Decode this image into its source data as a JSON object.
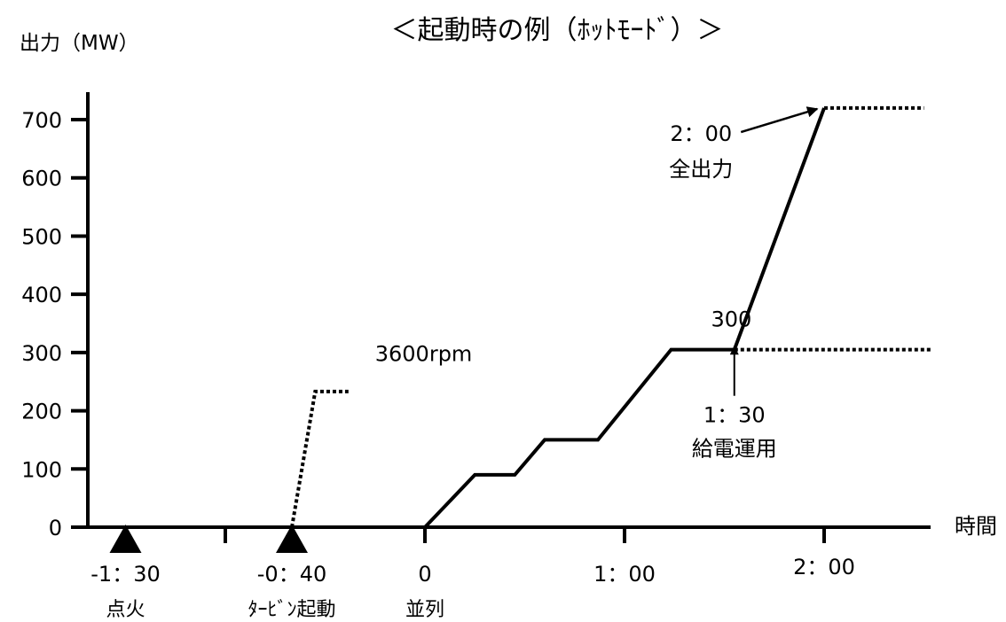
{
  "chart_data": {
    "type": "line",
    "title": "＜起動時の例（ﾎｯﾄﾓｰﾄﾞ）＞",
    "ylabel": "出力（MW）",
    "xlabel": "時間",
    "ylim": [
      0,
      700
    ],
    "y_ticks": [
      "0",
      "100",
      "200",
      "300",
      "400",
      "500",
      "600",
      "700"
    ],
    "x_ticks": [
      {
        "t": -90,
        "label": "-1：30",
        "caption": "点火",
        "marker": "triangle"
      },
      {
        "t": -60,
        "label": "",
        "caption": "",
        "marker": "none"
      },
      {
        "t": -40,
        "label": "-0：40",
        "caption": "ﾀｰﾋﾞﾝ起動",
        "marker": "triangle"
      },
      {
        "t": 0,
        "label": "0",
        "caption": "並列",
        "marker": "none"
      },
      {
        "t": 60,
        "label": "1：00",
        "caption": "",
        "marker": "none"
      },
      {
        "t": 120,
        "label": "2：00",
        "caption": "",
        "marker": "none"
      }
    ],
    "series": [
      {
        "style": "solid",
        "x": [
          0,
          15,
          27,
          36,
          52,
          74,
          93,
          120
        ],
        "y": [
          0,
          90,
          90,
          150,
          150,
          305,
          305,
          720
        ]
      },
      {
        "style": "dotted",
        "x": [
          -40,
          -33,
          -23
        ],
        "y": [
          0,
          233,
          233
        ]
      },
      {
        "style": "dotted",
        "x": [
          93,
          152
        ],
        "y": [
          305,
          305
        ]
      },
      {
        "style": "dotted",
        "x": [
          120,
          150
        ],
        "y": [
          720,
          720
        ]
      }
    ],
    "annotations": [
      {
        "text": "3600rpm",
        "x": -23,
        "y": 285
      },
      {
        "text": "300",
        "x": 78,
        "y": 345
      },
      {
        "text": "1：30",
        "caption": "給電運用",
        "x": 93,
        "y": 180,
        "arrow_to_x": 93,
        "arrow_to_y": 310
      },
      {
        "text": "2：00",
        "caption": "全出力",
        "x": 87,
        "y": 700,
        "arrow_to_x": 119,
        "arrow_to_y": 723
      }
    ]
  }
}
